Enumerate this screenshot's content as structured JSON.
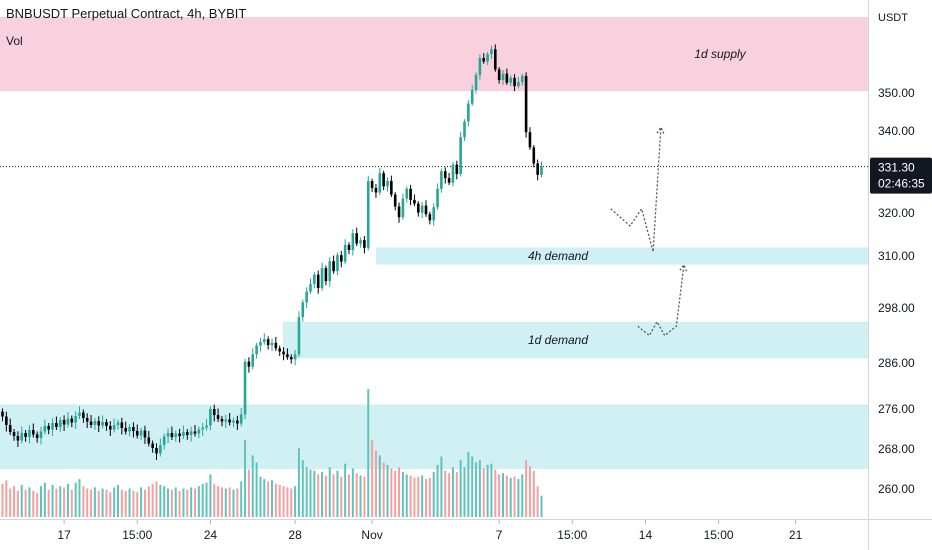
{
  "header": {
    "title": "BNBUSDT Perpetual Contract, 4h, BYBIT",
    "indicator": "Vol"
  },
  "price_axis": {
    "currency": "USDT",
    "current_price": "331.30",
    "countdown": "02:46:35"
  },
  "colors": {
    "up": "#26a69a",
    "down": "#000000",
    "supply_zone": "#f8c8d8",
    "demand_zone": "#b2e6ec",
    "volume_up": "#5ec4bb",
    "volume_down": "#f2a0a0",
    "price_tag_bg": "#131722"
  },
  "chart_data": {
    "type": "candlestick",
    "title": "BNBUSDT Perpetual Contract, 4h, BYBIT",
    "ylabel": "USDT",
    "y_ticks": [
      "260.00",
      "268.00",
      "276.00",
      "286.00",
      "298.00",
      "310.00",
      "320.00",
      "340.00",
      "350.00"
    ],
    "y_tick_values": [
      260,
      268,
      276,
      286,
      298,
      310,
      320,
      340,
      350
    ],
    "x_ticks": [
      "17",
      "15:00",
      "24",
      "28",
      "Nov",
      "7",
      "15:00",
      "14",
      "15:00",
      "21"
    ],
    "x_tick_index": [
      16,
      35,
      54,
      76,
      96,
      129,
      148,
      167,
      186,
      206
    ],
    "current_price": 331.3,
    "zones": [
      {
        "label": "1d supply",
        "kind": "supply",
        "low": 350.5,
        "high": 370
      },
      {
        "label": "4h demand",
        "kind": "demand",
        "low": 308,
        "high": 312
      },
      {
        "label": "1d demand",
        "kind": "demand",
        "low": 287,
        "high": 295
      },
      {
        "label": "",
        "kind": "demand",
        "low": 264,
        "high": 277
      }
    ],
    "projections": [
      {
        "path": [
          [
            158,
            321
          ],
          [
            163,
            317
          ],
          [
            166,
            321
          ],
          [
            169,
            311
          ],
          [
            171,
            341
          ]
        ]
      },
      {
        "path": [
          [
            165,
            294
          ],
          [
            168,
            292
          ],
          [
            170,
            295
          ],
          [
            172,
            292
          ],
          [
            175,
            294
          ],
          [
            177,
            308
          ]
        ]
      }
    ],
    "close": [
      274.5,
      272.8,
      271.4,
      270.6,
      269.7,
      271.2,
      270.4,
      271.8,
      270.9,
      270.2,
      271.5,
      272.6,
      271.9,
      273.2,
      272.4,
      273.8,
      272.9,
      274.1,
      273.3,
      274.6,
      275.3,
      274.2,
      273.5,
      272.8,
      273.6,
      272.7,
      273.4,
      272.6,
      271.9,
      272.8,
      273.3,
      272.2,
      271.5,
      272.4,
      271.6,
      270.7,
      271.7,
      270.3,
      269.1,
      268.2,
      267.1,
      268.8,
      270.5,
      271.2,
      270.4,
      271.1,
      270.6,
      271.4,
      270.8,
      271.5,
      271.1,
      271.9,
      272.3,
      272.7,
      276.0,
      274.8,
      274.0,
      273.5,
      273.9,
      273.3,
      273.7,
      273.1,
      274.9,
      286.3,
      285.2,
      287.9,
      289.8,
      290.6,
      291.2,
      289.9,
      290.4,
      289.2,
      288.5,
      287.9,
      287.3,
      286.8,
      287.9,
      296.0,
      299.3,
      301.8,
      303.5,
      305.7,
      302.6,
      307.2,
      304.2,
      308.8,
      306.5,
      310.2,
      308.7,
      312.6,
      311.4,
      315.3,
      312.9,
      313.7,
      311.9,
      327.8,
      326.1,
      325.0,
      329.7,
      326.5,
      327.8,
      324.5,
      321.6,
      319.0,
      323.5,
      325.9,
      323.2,
      322.3,
      320.1,
      321.8,
      319.7,
      318.3,
      321.4,
      325.9,
      330.2,
      328.5,
      327.4,
      331.8,
      329.5,
      338.5,
      342.5,
      347.2,
      350.8,
      354.8,
      359.2,
      358.3,
      360.2,
      361.5,
      356.2,
      353.4,
      355.1,
      352.7,
      354.0,
      351.8,
      352.9,
      354.5,
      339.7,
      336.0,
      332.1,
      329.3,
      331.3
    ],
    "volume": [
      2.8,
      3.1,
      2.4,
      2.6,
      2.2,
      2.7,
      2.3,
      2.5,
      2.2,
      2.0,
      2.6,
      2.9,
      2.3,
      2.7,
      2.4,
      2.6,
      2.5,
      2.8,
      2.3,
      2.9,
      3.2,
      2.6,
      2.4,
      2.3,
      2.5,
      2.2,
      2.4,
      2.3,
      2.1,
      2.5,
      2.7,
      2.3,
      2.2,
      2.4,
      2.2,
      2.1,
      2.5,
      2.3,
      2.6,
      2.8,
      3.0,
      2.7,
      2.6,
      2.4,
      2.3,
      2.5,
      2.2,
      2.4,
      2.3,
      2.5,
      2.4,
      2.6,
      2.8,
      2.9,
      3.6,
      2.8,
      2.6,
      2.5,
      2.4,
      2.5,
      2.3,
      2.4,
      3.0,
      6.5,
      4.0,
      5.2,
      4.6,
      3.4,
      3.2,
      3.0,
      3.1,
      2.8,
      2.7,
      2.6,
      2.5,
      2.4,
      2.6,
      5.8,
      4.8,
      4.2,
      4.0,
      3.9,
      3.6,
      3.8,
      3.5,
      4.2,
      3.6,
      3.9,
      3.4,
      4.5,
      3.6,
      4.1,
      3.7,
      3.5,
      3.4,
      10.8,
      6.5,
      5.6,
      5.2,
      4.6,
      4.4,
      4.1,
      3.9,
      4.2,
      3.8,
      3.6,
      3.5,
      3.3,
      3.4,
      3.5,
      3.2,
      3.3,
      3.8,
      4.4,
      5.1,
      3.9,
      3.7,
      4.2,
      3.8,
      4.8,
      4.2,
      5.5,
      5.1,
      4.6,
      4.8,
      4.1,
      4.4,
      4.5,
      4.0,
      3.6,
      3.7,
      3.5,
      3.3,
      3.4,
      3.2,
      3.6,
      4.8,
      4.3,
      3.9,
      2.6,
      1.8
    ]
  }
}
